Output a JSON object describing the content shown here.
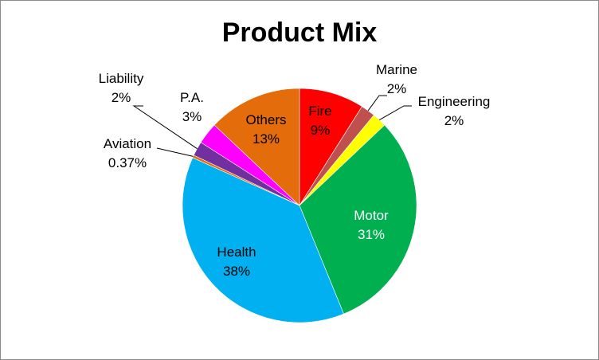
{
  "chart_data": {
    "type": "pie",
    "title": "Product Mix",
    "start_angle_deg": 0,
    "direction": "clockwise",
    "slices": [
      {
        "label": "Fire",
        "value_label": "9%",
        "value": 9,
        "color": "#ff0000",
        "label_color": "#000000"
      },
      {
        "label": "Marine",
        "value_label": "2%",
        "value": 2,
        "color": "#c0504d",
        "label_color": "#000000"
      },
      {
        "label": "Engineering",
        "value_label": "2%",
        "value": 2,
        "color": "#ffff00",
        "label_color": "#000000"
      },
      {
        "label": "Motor",
        "value_label": "31%",
        "value": 31,
        "color": "#00b050",
        "label_color": "#ffffff"
      },
      {
        "label": "Health",
        "value_label": "38%",
        "value": 38,
        "color": "#00b0f0",
        "label_color": "#000000"
      },
      {
        "label": "Aviation",
        "value_label": "0.37%",
        "value": 0.37,
        "color": "#e46c0a",
        "label_color": "#000000"
      },
      {
        "label": "Liability",
        "value_label": "2%",
        "value": 2,
        "color": "#7030a0",
        "label_color": "#000000"
      },
      {
        "label": "P.A.",
        "value_label": "3%",
        "value": 3,
        "color": "#ff00ff",
        "label_color": "#000000"
      },
      {
        "label": "Others",
        "value_label": "13%",
        "value": 13,
        "color": "#e46c0a",
        "label_color": "#000000"
      }
    ]
  }
}
